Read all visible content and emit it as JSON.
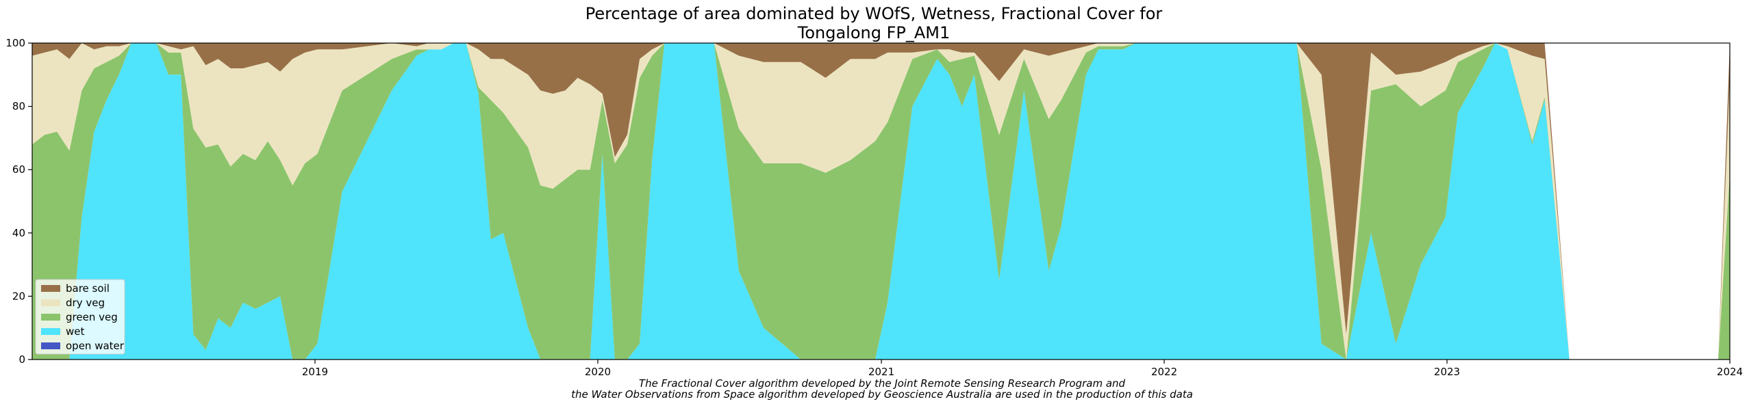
{
  "chart_data": {
    "type": "area",
    "stacked": true,
    "title_lines": [
      "Percentage of area dominated by WOfS, Wetness, Fractional Cover for",
      "Tongalong FP_AM1"
    ],
    "xlabel": "",
    "ylabel": "",
    "xlim": [
      "2018-01-01",
      "2024-01-01"
    ],
    "ylim": [
      0,
      100
    ],
    "x_ticks": [
      "2019",
      "2020",
      "2021",
      "2022",
      "2023",
      "2024"
    ],
    "y_ticks": [
      "0",
      "20",
      "40",
      "60",
      "80",
      "100"
    ],
    "grid": false,
    "legend_position": "lower-left",
    "legend": [
      "bare soil",
      "dry veg",
      "green veg",
      "wet",
      "open water"
    ],
    "series_colors": {
      "open_water": "#4457c4",
      "wet": "#4fe3fc",
      "green_veg": "#8cc46c",
      "dry_veg": "#ece4c0",
      "bare_soil": "#987048"
    },
    "x": [
      "2018-01-01",
      "2018-01-17",
      "2018-02-02",
      "2018-02-18",
      "2018-03-06",
      "2018-03-22",
      "2018-04-07",
      "2018-04-23",
      "2018-05-09",
      "2018-05-25",
      "2018-06-10",
      "2018-06-26",
      "2018-07-12",
      "2018-07-28",
      "2018-08-13",
      "2018-08-29",
      "2018-09-14",
      "2018-09-30",
      "2018-10-16",
      "2018-11-01",
      "2018-11-17",
      "2018-12-03",
      "2018-12-19",
      "2019-01-04",
      "2019-02-05",
      "2019-04-10",
      "2019-05-12",
      "2019-05-28",
      "2019-06-13",
      "2019-06-29",
      "2019-07-15",
      "2019-07-31",
      "2019-08-16",
      "2019-09-01",
      "2019-10-03",
      "2019-10-19",
      "2019-11-04",
      "2019-11-20",
      "2019-12-06",
      "2019-12-22",
      "2020-01-07",
      "2020-01-23",
      "2020-02-08",
      "2020-02-24",
      "2020-03-11",
      "2020-03-27",
      "2020-04-12",
      "2020-04-28",
      "2020-05-14",
      "2020-05-30",
      "2020-07-01",
      "2020-08-02",
      "2020-09-19",
      "2020-10-21",
      "2020-11-22",
      "2020-12-24",
      "2021-01-09",
      "2021-02-10",
      "2021-03-14",
      "2021-03-30",
      "2021-04-15",
      "2021-05-01",
      "2021-06-02",
      "2021-07-04",
      "2021-08-05",
      "2021-08-21",
      "2021-09-22",
      "2021-10-08",
      "2021-11-09",
      "2021-11-25",
      "2021-12-11",
      "2022-01-12",
      "2022-02-13",
      "2022-03-17",
      "2022-04-18",
      "2022-05-04",
      "2022-05-20",
      "2022-06-21",
      "2022-07-23",
      "2022-08-24",
      "2022-09-25",
      "2022-10-27",
      "2022-11-28",
      "2022-12-30",
      "2023-01-15",
      "2023-02-16",
      "2023-03-04",
      "2023-03-20",
      "2023-04-21",
      "2023-05-07",
      "2023-06-08",
      "2023-07-10",
      "2023-08-11",
      "2023-08-27",
      "2023-09-12",
      "2023-10-14",
      "2023-11-15",
      "2023-12-17",
      "2024-01-01"
    ],
    "series": [
      {
        "key": "open_water",
        "name": "open water",
        "values": [
          0,
          0,
          0,
          0,
          0,
          0,
          0,
          0,
          0,
          0,
          0,
          0,
          0,
          0,
          0,
          0,
          0,
          0,
          0,
          0,
          0,
          0,
          0,
          0,
          0,
          0,
          0,
          0,
          0,
          0,
          0,
          0,
          0,
          0,
          0,
          0,
          0,
          0,
          0,
          0,
          0,
          0,
          0,
          0,
          0,
          0,
          0,
          0,
          0,
          0,
          0,
          0,
          0,
          0,
          0,
          0,
          0,
          0,
          0,
          0,
          0,
          0,
          0,
          0,
          0,
          0,
          0,
          0,
          0,
          0,
          0,
          0,
          0,
          0,
          0,
          0,
          0,
          0,
          0,
          0,
          0,
          0,
          0,
          0,
          0,
          0,
          0,
          0,
          0,
          0,
          0,
          0,
          0,
          0,
          0,
          0,
          0,
          0,
          0
        ]
      },
      {
        "key": "wet",
        "name": "wet",
        "values": [
          0,
          0,
          0,
          0,
          45,
          72,
          82,
          90,
          100,
          100,
          100,
          90,
          90,
          8,
          3,
          13,
          10,
          18,
          16,
          18,
          20,
          0,
          0,
          5,
          53,
          85,
          96,
          98,
          98,
          100,
          100,
          84,
          38,
          40,
          10,
          0,
          0,
          0,
          0,
          0,
          65,
          0,
          0,
          5,
          63,
          100,
          100,
          100,
          100,
          100,
          28,
          10,
          0,
          0,
          0,
          0,
          18,
          80,
          95,
          90,
          80,
          90,
          25,
          85,
          28,
          42,
          90,
          98,
          98,
          100,
          100,
          100,
          100,
          100,
          100,
          100,
          100,
          100,
          5,
          0,
          40,
          5,
          30,
          45,
          78,
          92,
          100,
          98,
          68,
          82,
          0,
          0,
          0,
          0,
          0,
          0,
          0,
          0,
          0
        ]
      },
      {
        "key": "green_veg",
        "name": "green veg",
        "values": [
          68,
          71,
          72,
          66,
          40,
          20,
          12,
          6,
          0,
          0,
          0,
          7,
          7,
          65,
          64,
          55,
          51,
          47,
          47,
          51,
          43,
          55,
          62,
          60,
          32,
          10,
          2,
          0,
          0,
          0,
          0,
          2,
          44,
          38,
          57,
          55,
          54,
          57,
          60,
          60,
          17,
          62,
          68,
          84,
          33,
          0,
          0,
          0,
          0,
          0,
          45,
          52,
          62,
          59,
          63,
          69,
          57,
          15,
          3,
          4,
          15,
          6,
          46,
          10,
          48,
          40,
          7,
          1,
          1,
          0,
          0,
          0,
          0,
          0,
          0,
          0,
          0,
          0,
          55,
          0,
          45,
          82,
          50,
          40,
          16,
          6,
          0,
          0,
          1,
          1,
          0,
          0,
          0,
          0,
          0,
          0,
          0,
          0,
          59
        ]
      },
      {
        "key": "dry_veg",
        "name": "dry veg",
        "values": [
          28,
          26,
          26,
          29,
          15,
          6,
          5,
          3,
          0,
          0,
          0,
          2,
          1,
          26,
          26,
          27,
          31,
          27,
          30,
          25,
          28,
          40,
          35,
          33,
          13,
          5,
          1,
          2,
          2,
          0,
          0,
          12,
          13,
          17,
          23,
          30,
          30,
          28,
          29,
          27,
          2,
          2,
          3,
          6,
          2,
          0,
          0,
          0,
          0,
          0,
          23,
          32,
          32,
          30,
          32,
          26,
          22,
          2,
          0,
          4,
          2,
          1,
          17,
          3,
          20,
          15,
          2,
          1,
          1,
          0,
          0,
          0,
          0,
          0,
          0,
          0,
          0,
          0,
          30,
          8,
          12,
          3,
          11,
          9,
          2,
          1,
          0,
          1,
          27,
          12,
          0,
          0,
          0,
          0,
          0,
          0,
          0,
          0,
          30
        ]
      },
      {
        "key": "bare_soil",
        "name": "bare soil",
        "values": [
          4,
          3,
          2,
          5,
          0,
          2,
          1,
          1,
          0,
          0,
          0,
          1,
          2,
          1,
          7,
          5,
          8,
          8,
          7,
          6,
          9,
          5,
          3,
          2,
          2,
          0,
          1,
          0,
          0,
          0,
          0,
          2,
          5,
          5,
          10,
          15,
          16,
          15,
          11,
          13,
          16,
          36,
          29,
          5,
          2,
          0,
          0,
          0,
          0,
          0,
          4,
          6,
          6,
          11,
          5,
          5,
          3,
          3,
          2,
          2,
          3,
          3,
          12,
          2,
          4,
          3,
          1,
          0,
          0,
          0,
          0,
          0,
          0,
          0,
          0,
          0,
          0,
          0,
          10,
          92,
          3,
          10,
          9,
          6,
          4,
          1,
          0,
          1,
          4,
          5,
          0,
          0,
          0,
          0,
          0,
          0,
          0,
          0,
          11
        ]
      }
    ]
  },
  "caption": {
    "line1": "The Fractional Cover algorithm developed by the Joint Remote Sensing Research Program and",
    "line2": "the Water Observations from Space algorithm developed by Geoscience Australia are used in the production of this data"
  }
}
